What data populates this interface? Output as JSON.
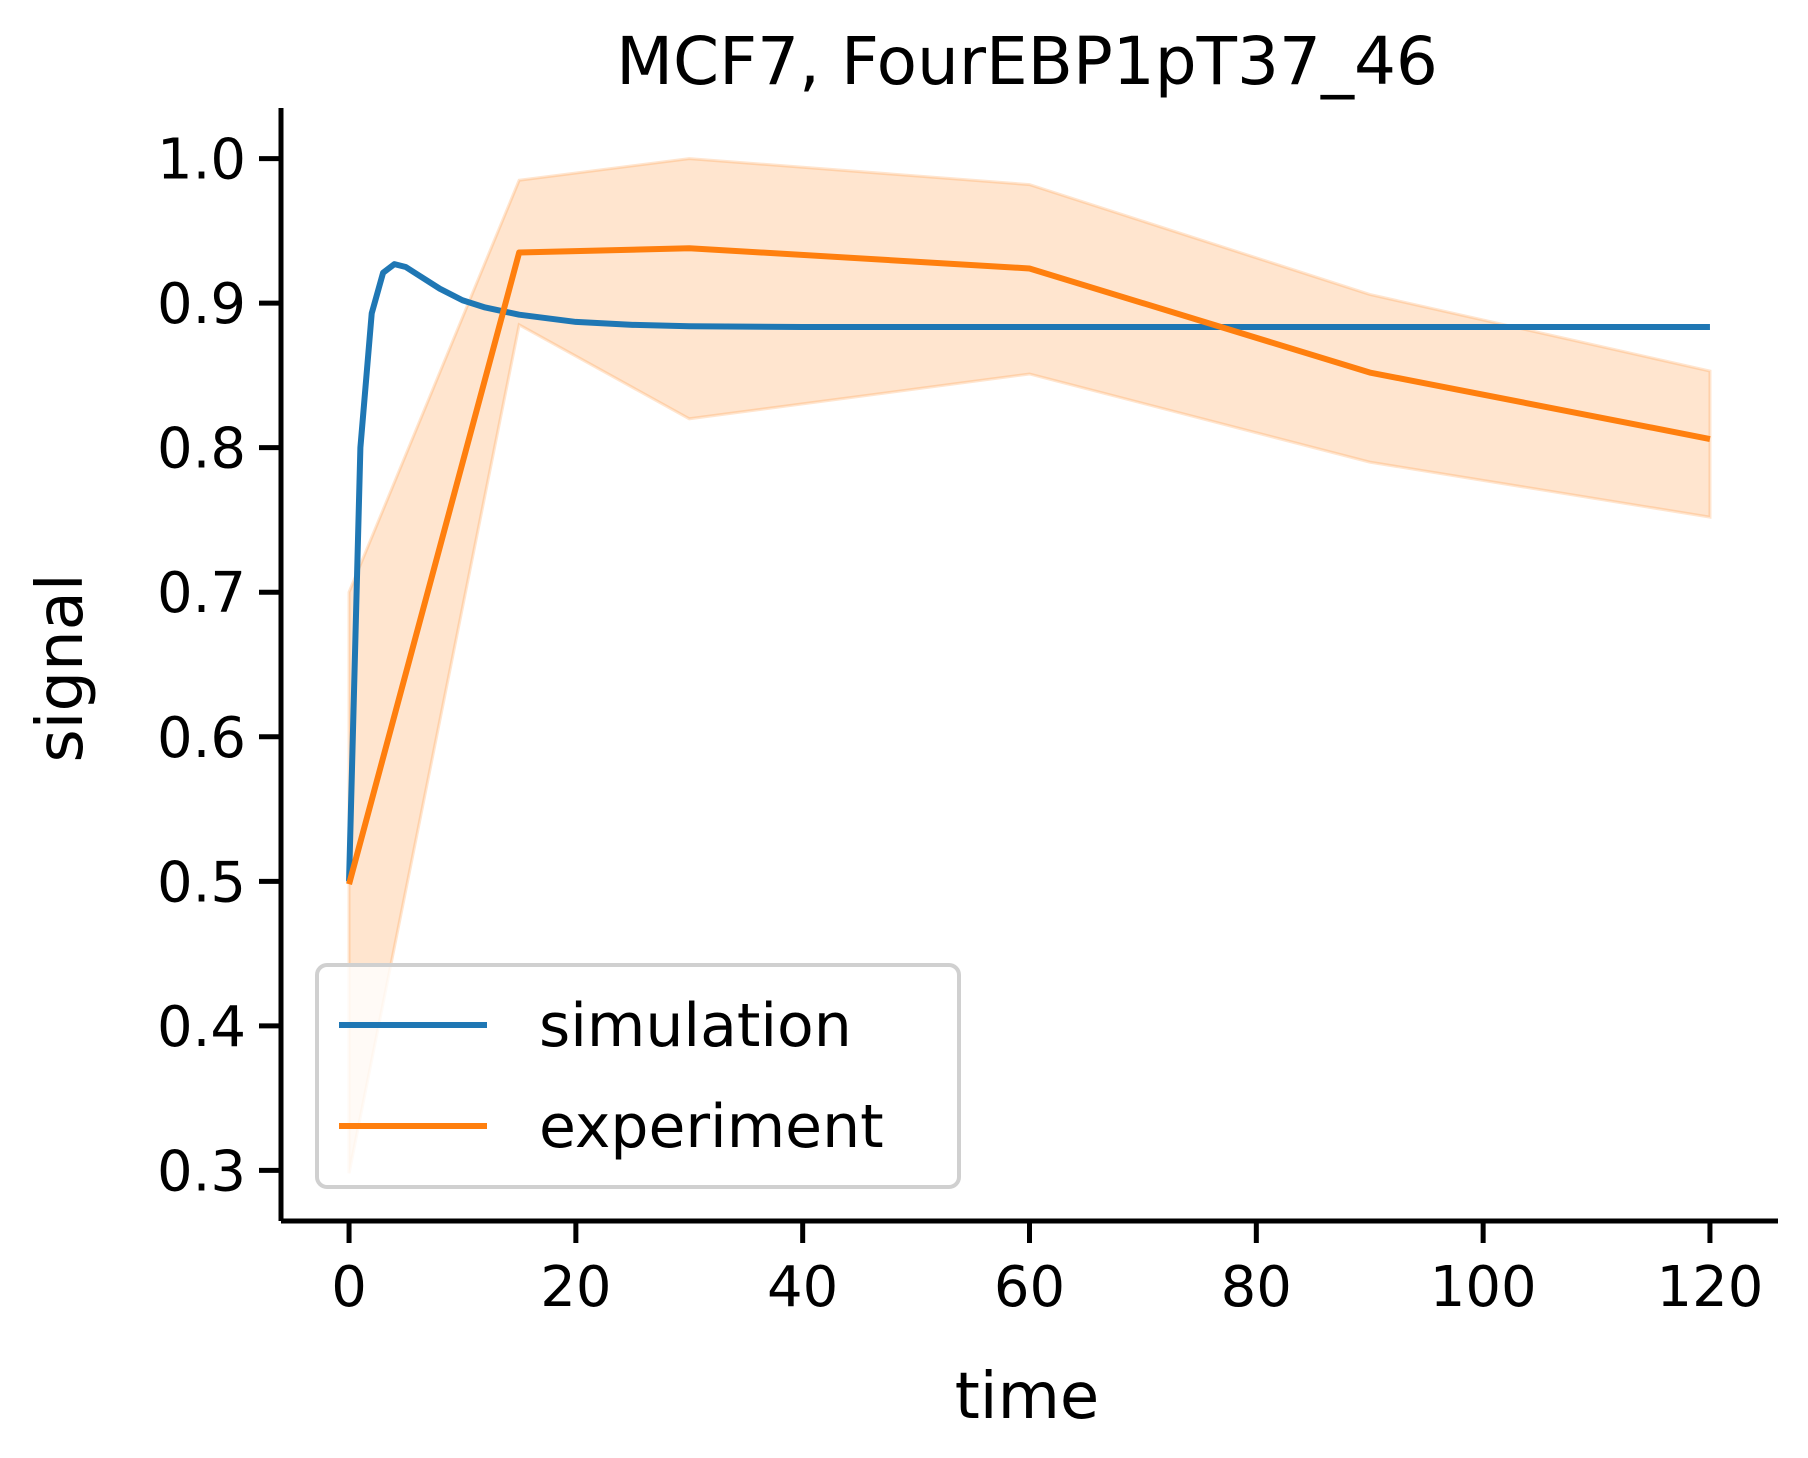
{
  "chart_data": {
    "type": "line",
    "title": "MCF7, FourEBP1pT37_46",
    "xlabel": "time",
    "ylabel": "signal",
    "xlim": [
      -6,
      126
    ],
    "ylim": [
      0.265,
      1.035
    ],
    "x_ticks": [
      0,
      20,
      40,
      60,
      80,
      100,
      120
    ],
    "y_ticks": [
      0.3,
      0.4,
      0.5,
      0.6,
      0.7,
      0.8,
      0.9,
      1.0
    ],
    "x_tick_labels": [
      "0",
      "20",
      "40",
      "60",
      "80",
      "100",
      "120"
    ],
    "y_tick_labels": [
      "0.3",
      "0.4",
      "0.5",
      "0.6",
      "0.7",
      "0.8",
      "0.9",
      "1.0"
    ],
    "grid": false,
    "legend_position": "lower-left",
    "series": [
      {
        "name": "simulation",
        "color": "#1f77b4",
        "x": [
          0,
          1,
          2,
          3,
          4,
          5,
          6,
          8,
          10,
          12,
          15,
          20,
          25,
          30,
          40,
          50,
          60,
          80,
          100,
          120
        ],
        "y": [
          0.5,
          0.8,
          0.893,
          0.921,
          0.927,
          0.925,
          0.92,
          0.91,
          0.902,
          0.897,
          0.892,
          0.887,
          0.885,
          0.884,
          0.8835,
          0.8835,
          0.8835,
          0.8835,
          0.8835,
          0.8835
        ]
      },
      {
        "name": "experiment",
        "color": "#ff7f0e",
        "x": [
          0,
          15,
          30,
          60,
          90,
          120
        ],
        "y": [
          0.498,
          0.935,
          0.938,
          0.924,
          0.852,
          0.806
        ],
        "lower": [
          0.298,
          0.885,
          0.82,
          0.851,
          0.79,
          0.752
        ],
        "upper": [
          0.7,
          0.985,
          1.0,
          0.982,
          0.906,
          0.853
        ]
      }
    ]
  }
}
